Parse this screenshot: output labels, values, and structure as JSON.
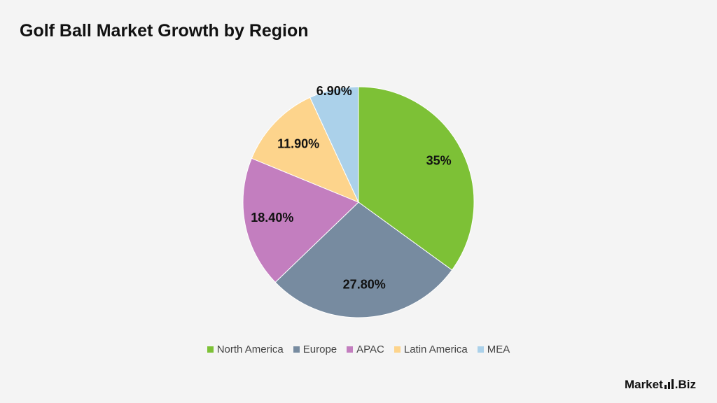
{
  "title": "Golf Ball Market Growth by Region",
  "chart_data": {
    "type": "pie",
    "title": "Golf Ball Market Growth by Region",
    "slices": [
      {
        "name": "North America",
        "value": 35,
        "label": "35%",
        "color": "#7dc136"
      },
      {
        "name": "Europe",
        "value": 27.8,
        "label": "27.80%",
        "color": "#778ba0"
      },
      {
        "name": "APAC",
        "value": 18.4,
        "label": "18.40%",
        "color": "#c37ebf"
      },
      {
        "name": "Latin America",
        "value": 11.9,
        "label": "11.90%",
        "color": "#fdd48c"
      },
      {
        "name": "MEA",
        "value": 6.9,
        "label": "6.90%",
        "color": "#abd1ea"
      }
    ],
    "start_angle_deg": 0,
    "direction": "clockwise",
    "legend_position": "bottom"
  },
  "brand": {
    "text_a": "Market",
    "text_b": ".Biz"
  }
}
